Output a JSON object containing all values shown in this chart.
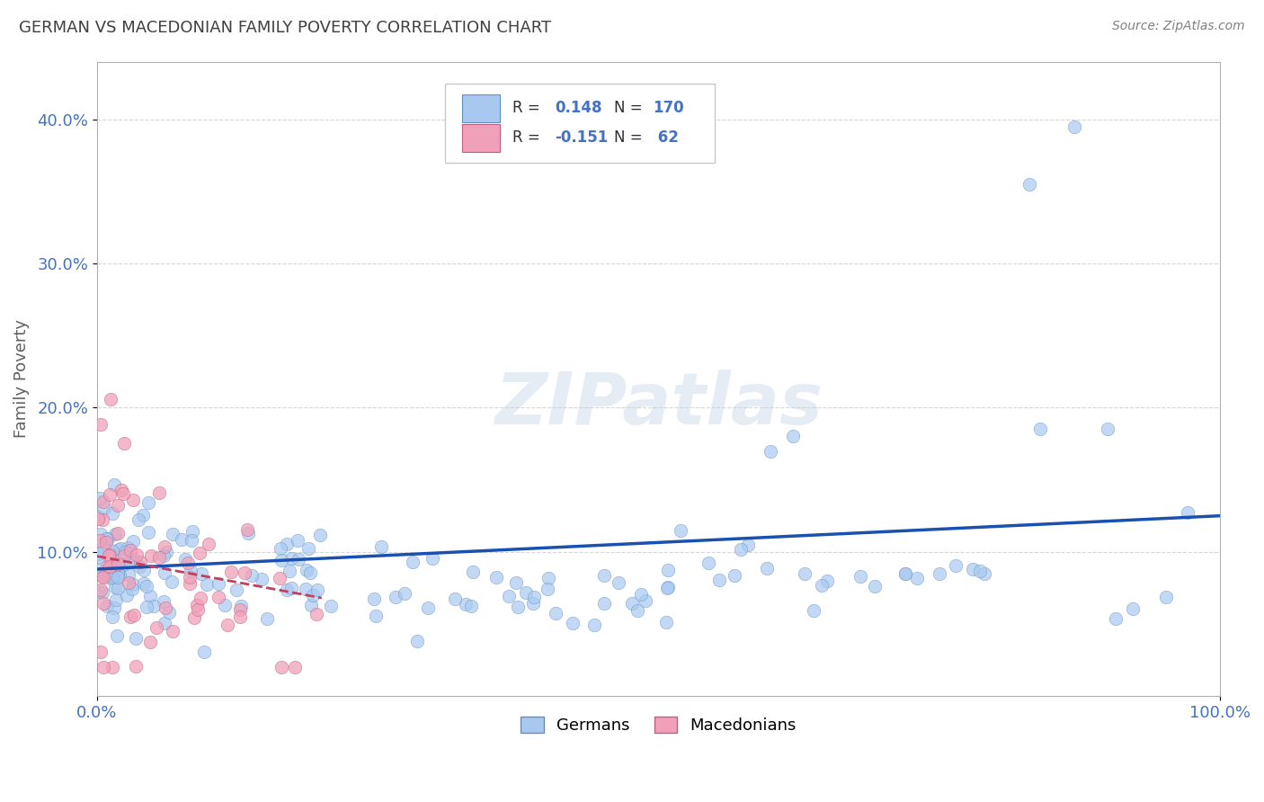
{
  "title": "GERMAN VS MACEDONIAN FAMILY POVERTY CORRELATION CHART",
  "source": "Source: ZipAtlas.com",
  "ylabel": "Family Poverty",
  "watermark": "ZIPatlas",
  "german_color": "#a8c8f0",
  "german_edge_color": "#6090c0",
  "macedonian_color": "#f0a0b8",
  "macedonian_edge_color": "#c06080",
  "german_line_color": "#1a50b0",
  "macedonian_line_color": "#c04060",
  "background_color": "#ffffff",
  "grid_color": "#cccccc",
  "title_color": "#404040",
  "tick_label_color": "#4472c4",
  "ylim": [
    0.0,
    0.44
  ],
  "xlim": [
    0.0,
    1.0
  ],
  "yticks": [
    0.1,
    0.2,
    0.3,
    0.4
  ],
  "ytick_labels": [
    "10.0%",
    "20.0%",
    "30.0%",
    "40.0%"
  ],
  "R_german": 0.148,
  "N_german": 170,
  "R_mace": -0.151,
  "N_mace": 62,
  "german_line_x": [
    0.0,
    1.0
  ],
  "german_line_y": [
    0.088,
    0.125
  ],
  "mace_line_x": [
    0.0,
    0.2
  ],
  "mace_line_y": [
    0.097,
    0.068
  ]
}
